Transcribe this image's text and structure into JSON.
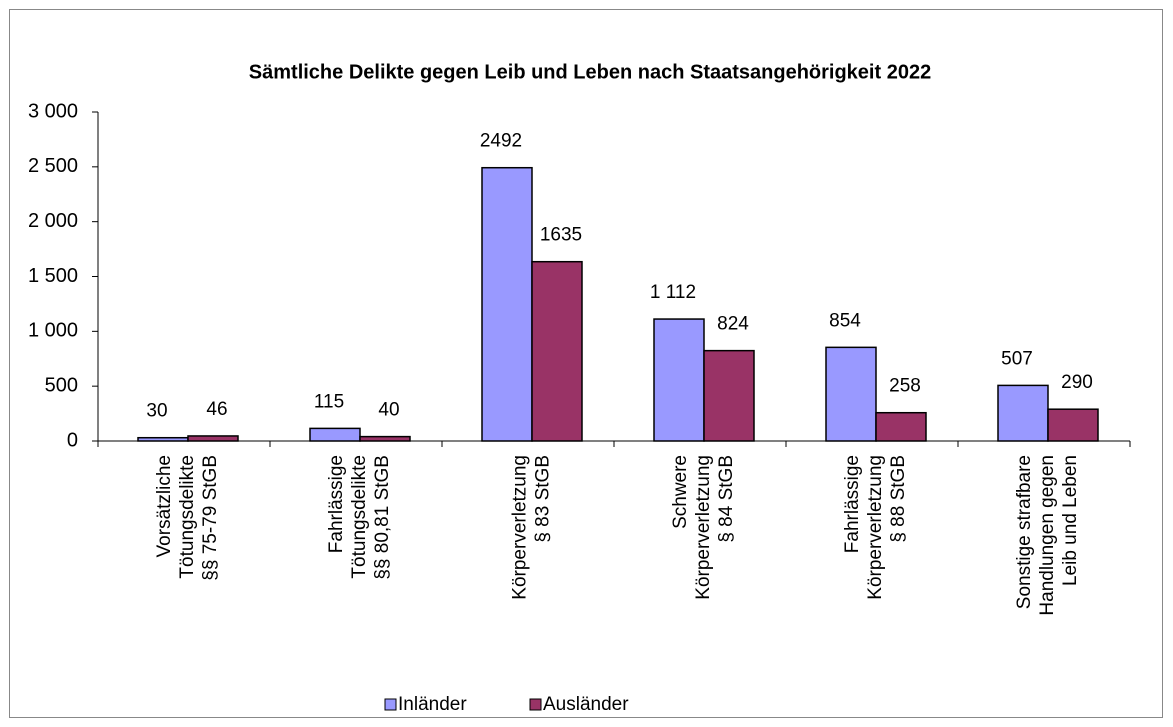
{
  "chart_data": {
    "type": "bar",
    "title": "Sämtliche Delikte gegen Leib und Leben nach Staatsangehörigkeit 2022",
    "categories": [
      [
        "Vorsätzliche",
        "Tötungsdelikte",
        "§§ 75-79 StGB"
      ],
      [
        "Fahrlässige",
        "Tötungsdelikte",
        "§§ 80,81 StGB"
      ],
      [
        "Körperverletzung",
        "§ 83 StGB"
      ],
      [
        "Schwere",
        "Körperverletzung",
        "§ 84 StGB"
      ],
      [
        "Fahrlässige",
        "Körperverletzung",
        "§ 88 StGB"
      ],
      [
        "Sonstige strafbare",
        "Handlungen gegen",
        "Leib und Leben"
      ]
    ],
    "series": [
      {
        "name": "Inländer",
        "color": "#9999ff",
        "values": [
          30,
          115,
          2492,
          1112,
          854,
          507
        ],
        "value_labels": [
          "30",
          "115",
          "2492",
          "1 112",
          "854",
          "507"
        ]
      },
      {
        "name": "Ausländer",
        "color": "#993366",
        "values": [
          46,
          40,
          1635,
          824,
          258,
          290
        ],
        "value_labels": [
          "46",
          "40",
          "1635",
          "824",
          "258",
          "290"
        ]
      }
    ],
    "ylim": [
      0,
      3000
    ],
    "yticks": [
      0,
      500,
      {
        "value": 1000,
        "label": "1 000"
      },
      {
        "value": 1500,
        "label": "1 500"
      },
      {
        "value": 2000,
        "label": "2 000"
      },
      {
        "value": 2500,
        "label": "2 500"
      },
      {
        "value": 3000,
        "label": "3 000"
      }
    ],
    "grid": false,
    "legend": "bottom"
  }
}
